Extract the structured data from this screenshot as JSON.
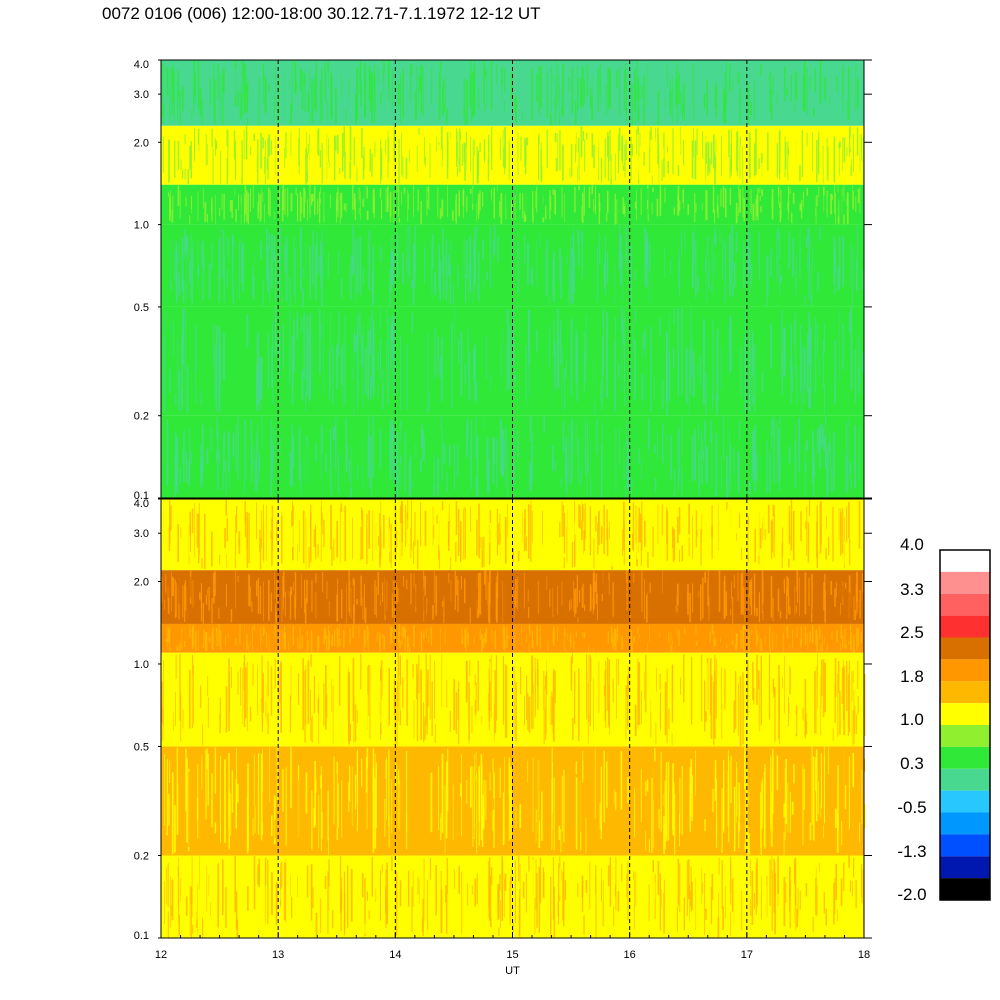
{
  "title": "0072 0106 (006) 12:00-18:00 30.12.71-7.1.1972  12-12 UT",
  "colors": {
    "black": "#000000",
    "navy": "#0018b0",
    "blue": "#0050ff",
    "azure": "#0098ff",
    "cyan": "#28c8ff",
    "teal": "#48d890",
    "green": "#30e838",
    "lime": "#90f030",
    "yellow": "#ffff00",
    "amber": "#ffb800",
    "orange": "#ff9800",
    "dark_orange": "#d87000",
    "red": "#ff3030",
    "salmon": "#ff6060",
    "pink": "#ff9090",
    "white": "#ffffff"
  },
  "chart_data": [
    {
      "type": "heatmap",
      "panel": "upper",
      "xlabel": "",
      "ylabel": "",
      "xlim": [
        12,
        18
      ],
      "ylim": [
        0.1,
        4.0
      ],
      "yscale": "log",
      "y_ticks": [
        {
          "value": 0.1,
          "label": "0.1"
        },
        {
          "value": 0.2,
          "label": "0.2"
        },
        {
          "value": 0.5,
          "label": "0.5"
        },
        {
          "value": 1.0,
          "label": "1.0"
        },
        {
          "value": 2.0,
          "label": "2.0"
        },
        {
          "value": 3.0,
          "label": "3.0"
        },
        {
          "value": 4.0,
          "label": "4.0"
        }
      ],
      "hour_markers": [
        13,
        14,
        15,
        16,
        17
      ],
      "bands": [
        {
          "y_from": 0.1,
          "y_to": 0.2,
          "dominant": "green",
          "secondary": "teal"
        },
        {
          "y_from": 0.2,
          "y_to": 0.5,
          "dominant": "green",
          "secondary": "teal"
        },
        {
          "y_from": 0.5,
          "y_to": 1.0,
          "dominant": "green",
          "secondary": "teal"
        },
        {
          "y_from": 1.0,
          "y_to": 1.4,
          "dominant": "green",
          "secondary": "lime"
        },
        {
          "y_from": 1.4,
          "y_to": 2.3,
          "dominant": "yellow",
          "secondary": "lime"
        },
        {
          "y_from": 2.3,
          "y_to": 4.0,
          "dominant": "teal",
          "secondary": "green"
        }
      ]
    },
    {
      "type": "heatmap",
      "panel": "lower",
      "xlabel": "UT",
      "ylabel": "",
      "xlim": [
        12,
        18
      ],
      "ylim": [
        0.1,
        4.0
      ],
      "yscale": "log",
      "x_ticks": [
        {
          "value": 12,
          "label": "12"
        },
        {
          "value": 13,
          "label": "13"
        },
        {
          "value": 14,
          "label": "14"
        },
        {
          "value": 15,
          "label": "15"
        },
        {
          "value": 16,
          "label": "16"
        },
        {
          "value": 17,
          "label": "17"
        },
        {
          "value": 18,
          "label": "18"
        }
      ],
      "y_ticks": [
        {
          "value": 0.1,
          "label": "0.1"
        },
        {
          "value": 0.2,
          "label": "0.2"
        },
        {
          "value": 0.5,
          "label": "0.5"
        },
        {
          "value": 1.0,
          "label": "1.0"
        },
        {
          "value": 2.0,
          "label": "2.0"
        },
        {
          "value": 3.0,
          "label": "3.0"
        },
        {
          "value": 4.0,
          "label": "4.0"
        }
      ],
      "hour_markers": [
        13,
        14,
        15,
        16,
        17
      ],
      "bands": [
        {
          "y_from": 0.1,
          "y_to": 0.2,
          "dominant": "yellow",
          "secondary": "amber"
        },
        {
          "y_from": 0.2,
          "y_to": 0.5,
          "dominant": "amber",
          "secondary": "yellow"
        },
        {
          "y_from": 0.5,
          "y_to": 1.1,
          "dominant": "yellow",
          "secondary": "amber"
        },
        {
          "y_from": 1.1,
          "y_to": 1.4,
          "dominant": "orange",
          "secondary": "amber"
        },
        {
          "y_from": 1.4,
          "y_to": 2.2,
          "dominant": "dark_orange",
          "secondary": "orange"
        },
        {
          "y_from": 2.2,
          "y_to": 4.0,
          "dominant": "yellow",
          "secondary": "amber"
        }
      ]
    }
  ],
  "colorbar": {
    "colors": [
      "white",
      "pink",
      "salmon",
      "red",
      "dark_orange",
      "orange",
      "amber",
      "yellow",
      "lime",
      "green",
      "teal",
      "cyan",
      "azure",
      "blue",
      "navy",
      "black"
    ],
    "labels": [
      {
        "value": 4.0,
        "label": "4.0"
      },
      {
        "value": 3.3,
        "label": "3.3"
      },
      {
        "value": 2.5,
        "label": "2.5"
      },
      {
        "value": 1.8,
        "label": "1.8"
      },
      {
        "value": 1.0,
        "label": "1.0"
      },
      {
        "value": 0.3,
        "label": "0.3"
      },
      {
        "value": -0.5,
        "label": "-0.5"
      },
      {
        "value": -1.3,
        "label": "-1.3"
      },
      {
        "value": -2.0,
        "label": "-2.0"
      }
    ],
    "range": [
      -2.0,
      4.0
    ]
  }
}
